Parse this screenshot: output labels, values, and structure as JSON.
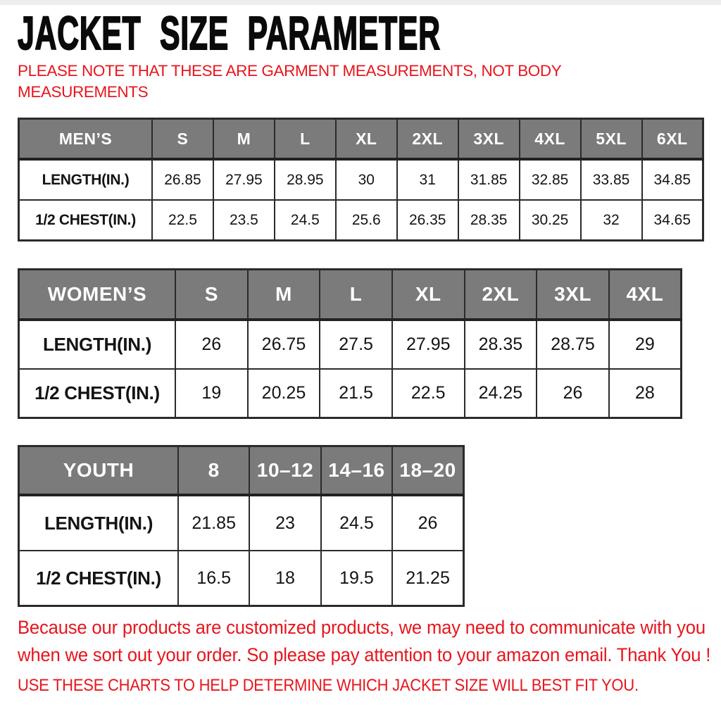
{
  "page": {
    "title": "JACKET SIZE PARAMETER",
    "note_lines": [
      "PLEASE NOTE THAT THESE ARE GARMENT MEASUREMENTS, NOT BODY",
      "MEASUREMENTS"
    ],
    "footer_lines": [
      "Because our products are customized products, we may need to communicate with you",
      "when we sort out your order. So please pay attention to your amazon email. Thank You !"
    ],
    "footer_caps": "USE THESE CHARTS TO HELP DETERMINE WHICH JACKET SIZE WILL BEST FIT YOU."
  },
  "colors": {
    "accent_red": "#e8151d",
    "header_gray": "#7b7b7b",
    "header_text": "#ffffff",
    "border": "#2b2b2b",
    "body_text": "#141414"
  },
  "tables": [
    {
      "name": "mens",
      "header": [
        "MEN’S",
        "S",
        "M",
        "L",
        "XL",
        "2XL",
        "3XL",
        "4XL",
        "5XL",
        "6XL"
      ],
      "rows": [
        [
          "LENGTH(IN.)",
          "26.85",
          "27.95",
          "28.95",
          "30",
          "31",
          "31.85",
          "32.85",
          "33.85",
          "34.85"
        ],
        [
          "1/2 CHEST(IN.)",
          "22.5",
          "23.5",
          "24.5",
          "25.6",
          "26.35",
          "28.35",
          "30.25",
          "32",
          "34.65"
        ]
      ]
    },
    {
      "name": "womens",
      "header": [
        "WOMEN’S",
        "S",
        "M",
        "L",
        "XL",
        "2XL",
        "3XL",
        "4XL"
      ],
      "rows": [
        [
          "LENGTH(IN.)",
          "26",
          "26.75",
          "27.5",
          "27.95",
          "28.35",
          "28.75",
          "29"
        ],
        [
          "1/2 CHEST(IN.)",
          "19",
          "20.25",
          "21.5",
          "22.5",
          "24.25",
          "26",
          "28"
        ]
      ]
    },
    {
      "name": "youth",
      "header": [
        "YOUTH",
        "8",
        "10–12",
        "14–16",
        "18–20"
      ],
      "rows": [
        [
          "LENGTH(IN.)",
          "21.85",
          "23",
          "24.5",
          "26"
        ],
        [
          "1/2 CHEST(IN.)",
          "16.5",
          "18",
          "19.5",
          "21.25"
        ]
      ]
    }
  ]
}
